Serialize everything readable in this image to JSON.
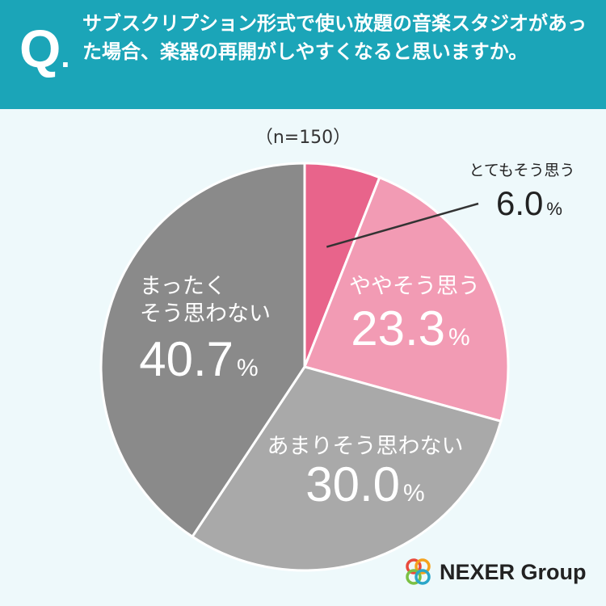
{
  "header": {
    "q_letter": "Q",
    "q_dot": ".",
    "question": "サブスクリプション形式で使い放題の音楽スタジオがあった場合、楽器の再開がしやすくなると思いますか。"
  },
  "sample": "（n=150）",
  "chart_data": {
    "type": "pie",
    "start_angle_deg": 0,
    "direction": "clockwise",
    "slices": [
      {
        "label": "とてもそう思う",
        "value": 6.0,
        "display": "6.0",
        "unit": "%",
        "color": "#e8648b"
      },
      {
        "label": "ややそう思う",
        "value": 23.3,
        "display": "23.3",
        "unit": "%",
        "color": "#f29bb4"
      },
      {
        "label": "あまりそう思わない",
        "value": 30.0,
        "display": "30.0",
        "unit": "%",
        "color": "#a9a9a9"
      },
      {
        "label": "まったく\nそう思わない",
        "value": 40.7,
        "display": "40.7",
        "unit": "%",
        "color": "#8a8a8a"
      }
    ]
  },
  "logo": {
    "text": "NEXER Group",
    "colors": [
      "#e94a3c",
      "#f4a21d",
      "#7bc043",
      "#2aa6c8"
    ]
  }
}
